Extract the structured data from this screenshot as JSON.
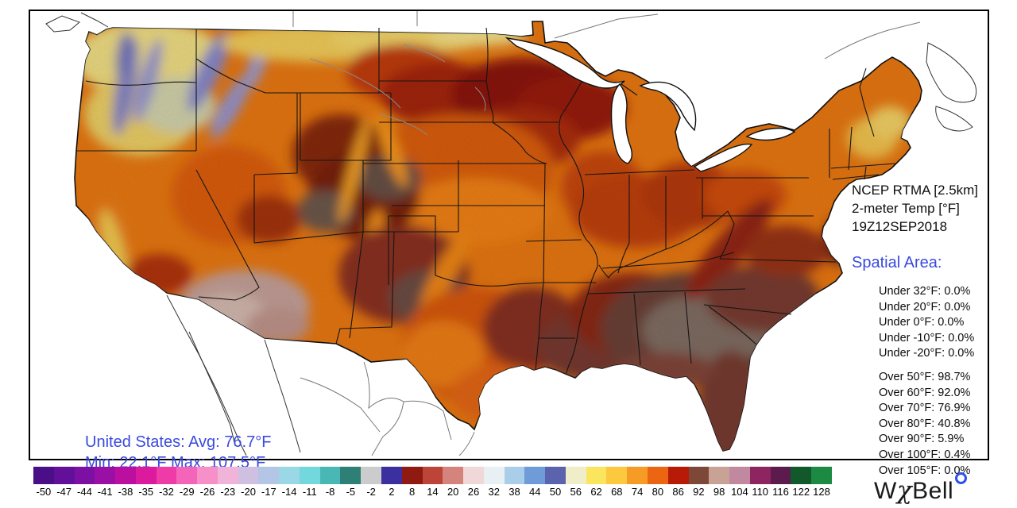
{
  "title": {
    "line1": "NCEP RTMA [2.5km]",
    "line2": "2-meter Temp [°F]",
    "line3": "19Z12SEP2018"
  },
  "spatial": {
    "heading": "Spatial Area:",
    "under": [
      "Under 32°F: 0.0%",
      "Under 20°F: 0.0%",
      "Under 0°F: 0.0%",
      "Under -10°F: 0.0%",
      "Under -20°F: 0.0%"
    ],
    "over": [
      "Over 50°F: 98.7%",
      "Over 60°F: 92.0%",
      "Over 70°F: 76.9%",
      "Over 80°F: 40.8%",
      "Over 90°F: 5.9%",
      "Over 100°F: 0.4%",
      "Over 105°F: 0.0%"
    ]
  },
  "us_summary": {
    "line1": "United States: Avg:  76.7°F",
    "line2": "Min:  22.1°F Max:  107.5°F"
  },
  "logo": {
    "w": "W",
    "chi": "χ",
    "bell": "Bell"
  },
  "colors": {
    "accent_blue": "#3a4ae0",
    "logo_degree": "#2b50f0"
  },
  "colorbar": {
    "labels": [
      "-50",
      "-47",
      "-44",
      "-41",
      "-38",
      "-35",
      "-32",
      "-29",
      "-26",
      "-23",
      "-20",
      "-17",
      "-14",
      "-11",
      "-8",
      "-5",
      "-2",
      "2",
      "8",
      "14",
      "20",
      "26",
      "32",
      "38",
      "44",
      "50",
      "56",
      "62",
      "68",
      "74",
      "80",
      "86",
      "92",
      "98",
      "104",
      "110",
      "116",
      "122",
      "128"
    ],
    "colors": [
      "#4a0e86",
      "#62109a",
      "#7c10a2",
      "#9a10a4",
      "#bb0fa0",
      "#dc1a9e",
      "#ee3ba8",
      "#f464b8",
      "#f78fc8",
      "#f0b4d8",
      "#cfc0e2",
      "#b3c6e6",
      "#9bd8e6",
      "#72d8dd",
      "#49b8b4",
      "#2e8076",
      "#cccccc",
      "#3c2fa0",
      "#8e1a12",
      "#bc4538",
      "#d4847c",
      "#f0d8d8",
      "#e9f0f4",
      "#aacdea",
      "#6f9bd8",
      "#5b63ae",
      "#efeec8",
      "#fbe55e",
      "#fcc83d",
      "#f79b27",
      "#ec6512",
      "#b71b07",
      "#7e4838",
      "#c8a294",
      "#c189a0",
      "#8e2560",
      "#5c1b4d",
      "#11592b",
      "#1d8a43"
    ]
  },
  "chart_data": {
    "type": "heatmap",
    "title": "NCEP RTMA [2.5km] 2-meter Temp [°F] 19Z12SEP2018",
    "region": "United States",
    "avg_f": 76.7,
    "min_f": 22.1,
    "max_f": 107.5,
    "colorbar_values_f": [
      -50,
      -47,
      -44,
      -41,
      -38,
      -35,
      -32,
      -29,
      -26,
      -23,
      -20,
      -17,
      -14,
      -11,
      -8,
      -5,
      -2,
      2,
      8,
      14,
      20,
      26,
      32,
      38,
      44,
      50,
      56,
      62,
      68,
      74,
      80,
      86,
      92,
      98,
      104,
      110,
      116,
      122,
      128
    ],
    "spatial_area_pct": {
      "under_32F": 0.0,
      "under_20F": 0.0,
      "under_0F": 0.0,
      "under_-10F": 0.0,
      "under_-20F": 0.0,
      "over_50F": 98.7,
      "over_60F": 92.0,
      "over_70F": 76.9,
      "over_80F": 40.8,
      "over_90F": 5.9,
      "over_100F": 0.4,
      "over_105F": 0.0
    },
    "legend_position": "bottom"
  }
}
